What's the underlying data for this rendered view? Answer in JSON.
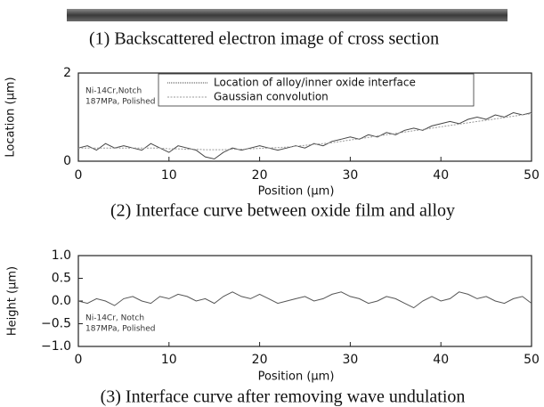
{
  "image_caption": "(1)    Backscattered electron image of cross section",
  "chart_data": [
    {
      "type": "line",
      "caption": "(2) Interface curve between oxide film and alloy",
      "xlabel": "Position (μm)",
      "ylabel": "Location (μm)",
      "annotation": [
        "Ni-14Cr,Notch",
        "187MPa, Polished"
      ],
      "legend": "upper center",
      "x": [
        0,
        1,
        2,
        3,
        4,
        5,
        6,
        7,
        8,
        9,
        10,
        11,
        12,
        13,
        14,
        15,
        16,
        17,
        18,
        19,
        20,
        21,
        22,
        23,
        24,
        25,
        26,
        27,
        28,
        29,
        30,
        31,
        32,
        33,
        34,
        35,
        36,
        37,
        38,
        39,
        40,
        41,
        42,
        43,
        44,
        45,
        46,
        47,
        48,
        49,
        50
      ],
      "series": [
        {
          "name": "Location of alloy/inner oxide interface",
          "color": "#444444",
          "values": [
            0.3,
            0.35,
            0.25,
            0.4,
            0.3,
            0.35,
            0.3,
            0.25,
            0.4,
            0.3,
            0.2,
            0.35,
            0.3,
            0.25,
            0.1,
            0.05,
            0.2,
            0.3,
            0.25,
            0.3,
            0.35,
            0.3,
            0.25,
            0.3,
            0.35,
            0.3,
            0.4,
            0.35,
            0.45,
            0.5,
            0.55,
            0.5,
            0.6,
            0.55,
            0.65,
            0.6,
            0.7,
            0.75,
            0.7,
            0.8,
            0.85,
            0.9,
            0.85,
            0.95,
            1.0,
            0.95,
            1.05,
            1.0,
            1.1,
            1.05,
            1.1
          ]
        },
        {
          "name": "Gaussian convolution",
          "color": "#999999",
          "values": [
            0.3,
            0.3,
            0.3,
            0.3,
            0.3,
            0.3,
            0.3,
            0.3,
            0.3,
            0.3,
            0.28,
            0.28,
            0.27,
            0.27,
            0.26,
            0.26,
            0.26,
            0.27,
            0.27,
            0.28,
            0.29,
            0.3,
            0.31,
            0.32,
            0.34,
            0.36,
            0.38,
            0.4,
            0.42,
            0.45,
            0.48,
            0.51,
            0.54,
            0.57,
            0.6,
            0.63,
            0.66,
            0.69,
            0.72,
            0.75,
            0.78,
            0.81,
            0.84,
            0.87,
            0.9,
            0.93,
            0.96,
            0.99,
            1.02,
            1.05,
            1.08
          ]
        }
      ],
      "xlim": [
        0,
        50
      ],
      "xticks": [
        0,
        10,
        20,
        30,
        40,
        50
      ],
      "ylim": [
        0,
        2
      ],
      "yticks": [
        0,
        2
      ]
    },
    {
      "type": "line",
      "caption": "(3) Interface curve after removing wave undulation",
      "xlabel": "Position (μm)",
      "ylabel": "Height (μm)",
      "annotation": [
        "Ni-14Cr, Notch",
        "187MPa, Polished"
      ],
      "x": [
        0,
        1,
        2,
        3,
        4,
        5,
        6,
        7,
        8,
        9,
        10,
        11,
        12,
        13,
        14,
        15,
        16,
        17,
        18,
        19,
        20,
        21,
        22,
        23,
        24,
        25,
        26,
        27,
        28,
        29,
        30,
        31,
        32,
        33,
        34,
        35,
        36,
        37,
        38,
        39,
        40,
        41,
        42,
        43,
        44,
        45,
        46,
        47,
        48,
        49,
        50
      ],
      "series": [
        {
          "color": "#555555",
          "values": [
            0.0,
            -0.05,
            0.05,
            0.0,
            -0.1,
            0.05,
            0.1,
            0.0,
            -0.05,
            0.1,
            0.05,
            0.15,
            0.1,
            0.0,
            0.05,
            -0.05,
            0.1,
            0.2,
            0.1,
            0.05,
            0.15,
            0.05,
            -0.05,
            0.0,
            0.05,
            0.1,
            0.0,
            0.05,
            0.15,
            0.2,
            0.1,
            0.05,
            -0.05,
            0.0,
            0.1,
            0.05,
            -0.05,
            -0.15,
            0.0,
            0.1,
            0.0,
            0.05,
            0.2,
            0.15,
            0.05,
            0.1,
            0.0,
            -0.05,
            0.05,
            0.1,
            -0.05
          ]
        }
      ],
      "xlim": [
        0,
        50
      ],
      "xticks": [
        0,
        10,
        20,
        30,
        40,
        50
      ],
      "ylim": [
        -1,
        1
      ],
      "yticks": [
        {
          "value": 1,
          "label": "1.0"
        },
        {
          "value": 0.5,
          "label": "0.5"
        },
        {
          "value": 0,
          "label": "0.0"
        },
        {
          "value": -0.5,
          "label": "−0.5"
        },
        {
          "value": -1,
          "label": "−1.0"
        }
      ]
    }
  ]
}
